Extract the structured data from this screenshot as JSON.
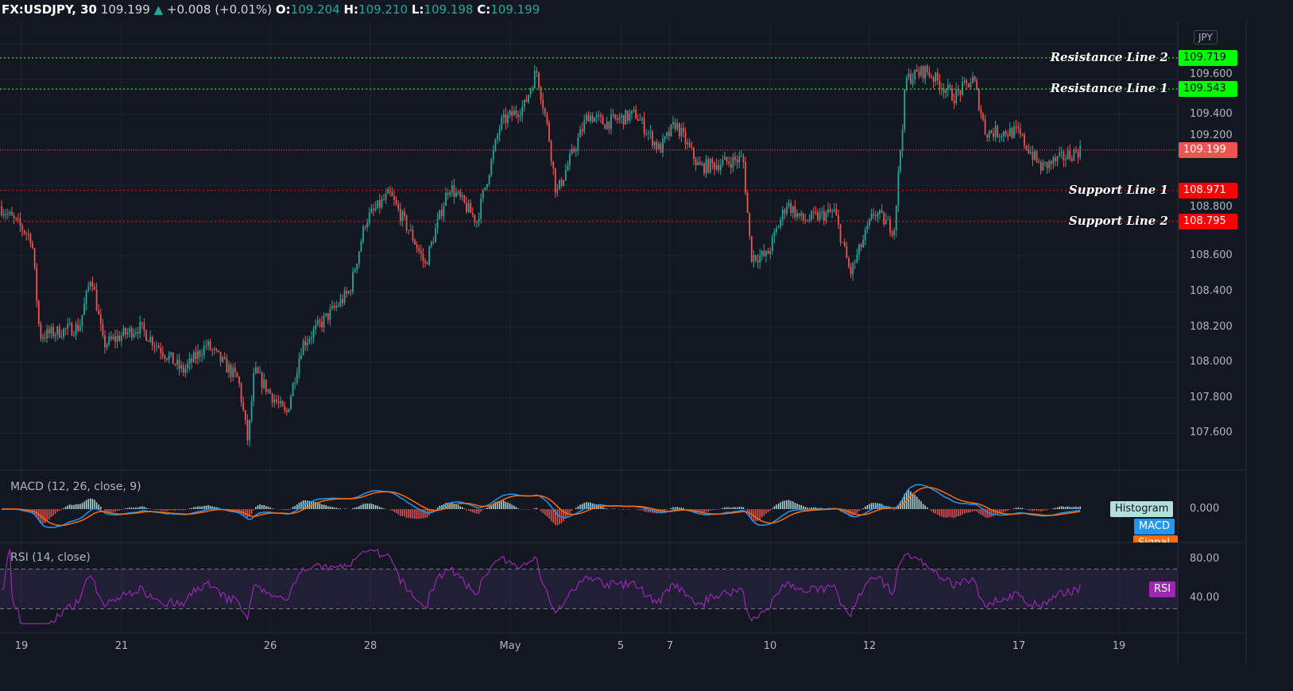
{
  "header": {
    "symbol": "FX:USDJPY, 30",
    "last": "109.199",
    "change": "+0.008 (+0.01%)",
    "o_label": "O:",
    "o": "109.204",
    "h_label": "H:",
    "h": "109.210",
    "l_label": "L:",
    "l": "109.198",
    "c_label": "C:",
    "c": "109.199",
    "up_icon": "triangle-up-icon"
  },
  "currency": "JPY",
  "price_axis": [
    "109.600",
    "109.400",
    "109.200",
    "108.800",
    "108.600",
    "108.400",
    "108.200",
    "108.000",
    "107.800",
    "107.600"
  ],
  "lines": [
    {
      "name": "Resistance Line 2",
      "price": "109.719",
      "color": "#00ff00"
    },
    {
      "name": "Resistance Line 1",
      "price": "109.543",
      "color": "#00ff00"
    },
    {
      "name": "Support Line 1",
      "price": "108.971",
      "color": "#ff0000"
    },
    {
      "name": "Support Line 2",
      "price": "108.795",
      "color": "#ff0000"
    }
  ],
  "last_price": {
    "value": "109.199",
    "color": "#ef5350"
  },
  "macd": {
    "title": "MACD (12, 26, close, 9)",
    "axis": "0.000",
    "labels": {
      "histogram": "Histogram",
      "macd": "MACD",
      "signal": "Signal"
    },
    "colors": {
      "macd": "#2196f3",
      "signal": "#ff6d00",
      "histogram": "#b2dfdb"
    }
  },
  "rsi": {
    "title": "RSI (14, close)",
    "axis": [
      "80.00",
      "40.00"
    ],
    "label": "RSI",
    "color": "#9c27b0",
    "bands": [
      70,
      30
    ]
  },
  "time_axis": [
    "19",
    "21",
    "26",
    "28",
    "May",
    "5",
    "7",
    "10",
    "12",
    "17",
    "19"
  ],
  "chart_data": {
    "type": "candlestick",
    "ylim": [
      107.45,
      109.82
    ],
    "price_path": [
      [
        0,
        108.88
      ],
      [
        40,
        108.7
      ],
      [
        50,
        108.15
      ],
      [
        100,
        108.2
      ],
      [
        115,
        108.5
      ],
      [
        130,
        108.1
      ],
      [
        175,
        108.2
      ],
      [
        230,
        107.95
      ],
      [
        260,
        108.1
      ],
      [
        300,
        107.9
      ],
      [
        312,
        107.55
      ],
      [
        320,
        107.95
      ],
      [
        360,
        107.7
      ],
      [
        380,
        108.1
      ],
      [
        410,
        108.25
      ],
      [
        440,
        108.4
      ],
      [
        460,
        108.8
      ],
      [
        490,
        108.95
      ],
      [
        520,
        108.7
      ],
      [
        535,
        108.55
      ],
      [
        565,
        109.0
      ],
      [
        600,
        108.8
      ],
      [
        630,
        109.35
      ],
      [
        660,
        109.45
      ],
      [
        675,
        109.65
      ],
      [
        690,
        109.3
      ],
      [
        700,
        108.95
      ],
      [
        740,
        109.4
      ],
      [
        760,
        109.35
      ],
      [
        800,
        109.4
      ],
      [
        830,
        109.2
      ],
      [
        850,
        109.35
      ],
      [
        880,
        109.1
      ],
      [
        935,
        109.15
      ],
      [
        945,
        108.6
      ],
      [
        965,
        108.6
      ],
      [
        990,
        108.9
      ],
      [
        1010,
        108.8
      ],
      [
        1050,
        108.85
      ],
      [
        1070,
        108.5
      ],
      [
        1100,
        108.85
      ],
      [
        1125,
        108.75
      ],
      [
        1140,
        109.6
      ],
      [
        1165,
        109.65
      ],
      [
        1200,
        109.5
      ],
      [
        1225,
        109.6
      ],
      [
        1240,
        109.3
      ],
      [
        1280,
        109.3
      ],
      [
        1310,
        109.1
      ],
      [
        1360,
        109.2
      ]
    ]
  }
}
